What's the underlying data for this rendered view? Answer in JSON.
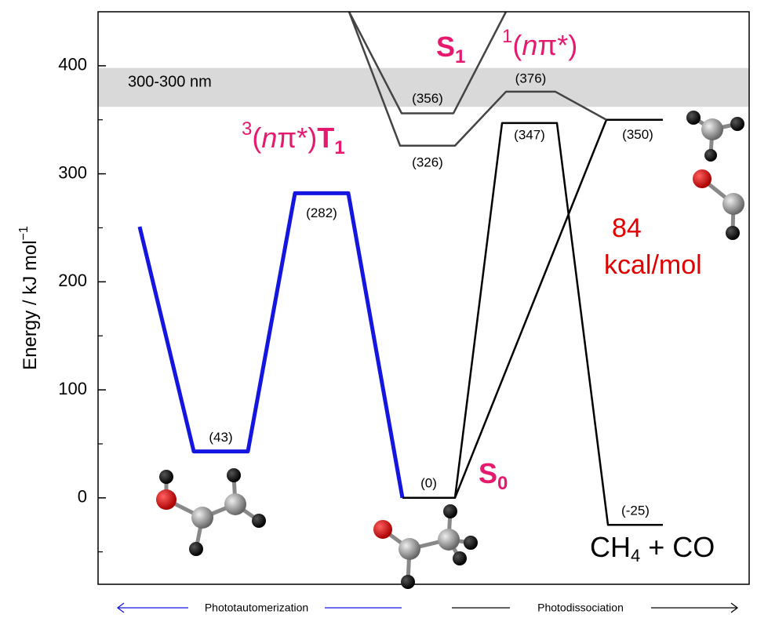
{
  "chart_data": {
    "type": "line",
    "ylabel": {
      "text": "Energy / kJ mol",
      "sup": "−1"
    },
    "ylim": [
      -80,
      450
    ],
    "yticks": [
      0,
      100,
      200,
      300,
      400
    ],
    "yminorticks": [
      -50,
      50,
      150,
      250,
      350
    ],
    "band": {
      "label": "300-300 nm",
      "range": [
        362,
        398
      ],
      "color": "#d9d9d9"
    },
    "series": [
      {
        "name": "Phototautomerization",
        "color": "#1515e0",
        "values": [
          251,
          43,
          43,
          282,
          282,
          0
        ],
        "value_labels": [
          null,
          "(43)",
          null,
          "(282)",
          null,
          null
        ]
      },
      {
        "name": "Photodissociation",
        "color": "#000000",
        "values": [
          0,
          0,
          347,
          347,
          -25,
          -25
        ],
        "value_labels": [
          "(0)",
          null,
          "(347)",
          null,
          "(-25)",
          null
        ]
      },
      {
        "color": "#000000",
        "values": [
          0,
          350,
          350
        ],
        "value_labels": [
          null,
          "(350)",
          null
        ]
      },
      {
        "color": "#444444",
        "values": [
          450,
          326,
          326,
          376,
          376,
          350
        ],
        "value_labels": [
          null,
          "(326)",
          null,
          "(376)",
          null,
          null
        ]
      },
      {
        "color": "#444444",
        "values": [
          450,
          356,
          356,
          450
        ],
        "value_labels": [
          null,
          "(356)",
          null,
          null
        ]
      }
    ],
    "labels": {
      "s1": {
        "main": "S",
        "sub": "1"
      },
      "singlet": {
        "sup": "1",
        "pre": "(",
        "italic": "n",
        "post": "π*)"
      },
      "triplet": {
        "sup": "3",
        "pre": "(",
        "italic": "n",
        "post": "π*)",
        "main": "T",
        "sub": "1"
      },
      "s0": {
        "main": "S",
        "sub": "0"
      },
      "energy": {
        "line1": "84",
        "line2": "kcal/mol"
      },
      "products": {
        "a": "CH",
        "sub": "4",
        "b": " + CO"
      }
    }
  }
}
